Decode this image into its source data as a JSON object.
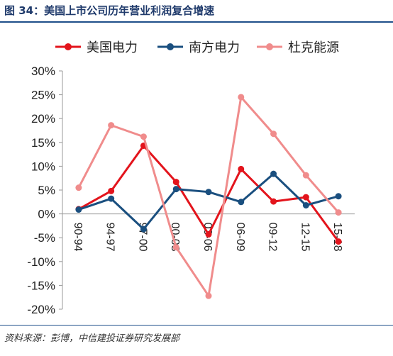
{
  "header": {
    "title": "图 34：美国上市公司历年营业利润复合增速"
  },
  "footer": {
    "source": "资料来源：彭博，中信建投证券研究发展部"
  },
  "chart_data": {
    "type": "line",
    "title": "",
    "xlabel": "",
    "ylabel": "",
    "categories": [
      "90-94",
      "94-97",
      "97-00",
      "00-03",
      "03-06",
      "06-09",
      "09-12",
      "12-15",
      "15-18"
    ],
    "ylim": [
      -20,
      30
    ],
    "yticks": [
      30,
      25,
      20,
      15,
      10,
      5,
      0,
      -5,
      -10,
      -15,
      -20
    ],
    "ytick_labels": [
      "30%",
      "25%",
      "20%",
      "15%",
      "10%",
      "5%",
      "0%",
      "-5%",
      "-10%",
      "-15%",
      "-20%"
    ],
    "grid": false,
    "legend_position": "top",
    "series": [
      {
        "name": "美国电力",
        "color": "#e3141c",
        "values": [
          1.0,
          4.8,
          14.3,
          6.7,
          -4.3,
          9.4,
          2.6,
          3.5,
          -5.8
        ]
      },
      {
        "name": "南方电力",
        "color": "#1a4f7f",
        "values": [
          0.9,
          3.2,
          -3.2,
          5.2,
          4.6,
          2.5,
          8.4,
          1.8,
          3.7
        ]
      },
      {
        "name": "杜克能源",
        "color": "#f08c8c",
        "values": [
          5.5,
          18.6,
          16.2,
          -7.0,
          -17.2,
          24.5,
          16.8,
          8.1,
          0.3
        ]
      }
    ]
  }
}
